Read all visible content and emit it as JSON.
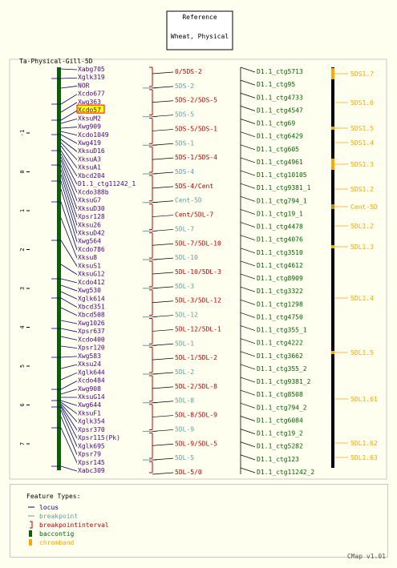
{
  "title_box": {
    "line1": "Reference",
    "line2": "Wheat, Physical"
  },
  "map_label": "Ta-Physical-Gill-5D",
  "scale_ticks": [
    "-1",
    "0",
    "1",
    "2",
    "3",
    "4",
    "5",
    "6",
    "7"
  ],
  "loci": [
    "Xabg705",
    "Xglk319",
    "NOR",
    "Xcdo677",
    "Xwg363",
    "Xcdo57",
    "XksuM2",
    "Xwg909",
    "Xcdo1049",
    "Xwg419",
    "XksuD16",
    "XksuA3",
    "XksuA1",
    "Xbcd204",
    "D1.1_ctg11242_1",
    "Xcdo388b",
    "XksuG7",
    "XksuD30",
    "Xpsr128",
    "Xksu26",
    "XksuD42",
    "Xwg564",
    "Xcdo786",
    "Xksu8",
    "XksuS1",
    "XksuG12",
    "Xcdo412",
    "Xwg530",
    "Xglk614",
    "Xbcd351",
    "Xbcd508",
    "Xwg1026",
    "Xpsr637",
    "Xcdo400",
    "Xpsr120",
    "Xwg583",
    "Xksu24",
    "Xglk644",
    "Xcdo484",
    "Xwg908",
    "XksuG14",
    "Xwg644",
    "XksuF1",
    "Xglk354",
    "Xpsr370",
    "Xpsr115(Pk)",
    "Xglk695",
    "Xpsr79",
    "Xpsr145",
    "Xabc309"
  ],
  "highlighted_locus": "Xcdo57",
  "bins": [
    {
      "label": "0/5DS-2",
      "color": "red"
    },
    {
      "label": "5DS-2",
      "color": "teal"
    },
    {
      "label": "5DS-2/5DS-5",
      "color": "red"
    },
    {
      "label": "5DS-5",
      "color": "teal"
    },
    {
      "label": "5DS-5/5DS-1",
      "color": "red"
    },
    {
      "label": "5DS-1",
      "color": "teal"
    },
    {
      "label": "5DS-1/5DS-4",
      "color": "red"
    },
    {
      "label": "5DS-4",
      "color": "teal"
    },
    {
      "label": "5DS-4/Cent",
      "color": "red"
    },
    {
      "label": "Cent-5D",
      "color": "teal"
    },
    {
      "label": "Cent/5DL-7",
      "color": "red"
    },
    {
      "label": "5DL-7",
      "color": "teal"
    },
    {
      "label": "5DL-7/5DL-10",
      "color": "red"
    },
    {
      "label": "5DL-10",
      "color": "teal"
    },
    {
      "label": "5DL-10/5DL-3",
      "color": "red"
    },
    {
      "label": "5DL-3",
      "color": "teal"
    },
    {
      "label": "5DL-3/5DL-12",
      "color": "red"
    },
    {
      "label": "5DL-12",
      "color": "teal"
    },
    {
      "label": "5DL-12/5DL-1",
      "color": "red"
    },
    {
      "label": "5DL-1",
      "color": "teal"
    },
    {
      "label": "5DL-1/5DL-2",
      "color": "red"
    },
    {
      "label": "5DL-2",
      "color": "teal"
    },
    {
      "label": "5DL-2/5DL-8",
      "color": "red"
    },
    {
      "label": "5DL-8",
      "color": "teal"
    },
    {
      "label": "5DL-8/5DL-9",
      "color": "red"
    },
    {
      "label": "5DL-9",
      "color": "teal"
    },
    {
      "label": "5DL-9/5DL-5",
      "color": "red"
    },
    {
      "label": "5DL-5",
      "color": "teal"
    },
    {
      "label": "5DL-5/0",
      "color": "red"
    }
  ],
  "contigs": [
    "D1.1_ctg5713",
    "D1.1_ctg95",
    "D1.1_ctg4733",
    "D1.1_ctg4547",
    "D1.1_ctg69",
    "D1.1_ctg6429",
    "D1.1_ctg605",
    "D1.1_ctg4961",
    "D1.1_ctg10105",
    "D1.1_ctg9381_1",
    "D1.1_ctg794_1",
    "D1.1_ctg19_1",
    "D1.1_ctg4478",
    "D1.1_ctg4076",
    "D1.1_ctg3510",
    "D1.1_ctg4612",
    "D1.1_ctg8909",
    "D1.1_ctg3322",
    "D1.1_ctg1298",
    "D1.1_ctg4750",
    "D1.1_ctg355_1",
    "D1.1_ctg4222",
    "D1.1_ctg3662",
    "D1.1_ctg355_2",
    "D1.1_ctg9381_2",
    "D1.1_ctg8508",
    "D1.1_ctg794_2",
    "D1.1_ctg6084",
    "D1.1_ctg19_2",
    "D1.1_ctg5282",
    "D1.1_ctg123",
    "D1.1_ctg11242_2"
  ],
  "chrombands": [
    "5DS1.7",
    "5DS1.6",
    "5DS1.5",
    "5DS1.4",
    "5DS1.3",
    "5DS1.2",
    "Cent-5D",
    "5DL1.2",
    "5DL1.3",
    "5DL1.4",
    "5DL1.5",
    "5DL1.61",
    "5DL1.62",
    "5DL1.63"
  ],
  "legend": {
    "title": "Feature Types:",
    "items": [
      {
        "label": "locus",
        "kind": "line",
        "color": "#000080"
      },
      {
        "label": "breakpoint",
        "kind": "line",
        "color": "#5f9ea0"
      },
      {
        "label": "breakpointinterval",
        "kind": "bracket",
        "color": "#c00000"
      },
      {
        "label": "baccontig",
        "kind": "bar",
        "color": "#006400"
      },
      {
        "label": "chromband",
        "kind": "bar",
        "color": "#ffa500"
      }
    ]
  },
  "footer": "CMap v1.01",
  "colors": {
    "background": "#fffff0",
    "locus_text": "#4b0082",
    "locus_line": "#000080",
    "bin_red": "#c00000",
    "bin_teal": "#5f9ea0",
    "contig_text": "#006400",
    "chromband": "#ffa500",
    "chromband_axis": "#000000",
    "highlight_fill": "#ffff00",
    "highlight_stroke": "#ff0000"
  }
}
